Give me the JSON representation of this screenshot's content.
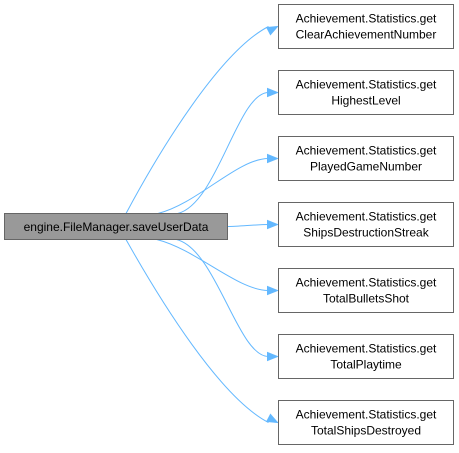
{
  "diagram": {
    "type": "call-graph",
    "source": {
      "label": "engine.FileManager.saveUserData"
    },
    "targets": [
      {
        "line1": "Achievement.Statistics.get",
        "line2": "ClearAchievementNumber"
      },
      {
        "line1": "Achievement.Statistics.get",
        "line2": "HighestLevel"
      },
      {
        "line1": "Achievement.Statistics.get",
        "line2": "PlayedGameNumber"
      },
      {
        "line1": "Achievement.Statistics.get",
        "line2": "ShipsDestructionStreak"
      },
      {
        "line1": "Achievement.Statistics.get",
        "line2": "TotalBulletsShot"
      },
      {
        "line1": "Achievement.Statistics.get",
        "line2": "TotalPlaytime"
      },
      {
        "line1": "Achievement.Statistics.get",
        "line2": "TotalShipsDestroyed"
      }
    ],
    "colors": {
      "source_fill": "#999999",
      "node_border": "#666666",
      "edge": "#63b8ff"
    }
  }
}
